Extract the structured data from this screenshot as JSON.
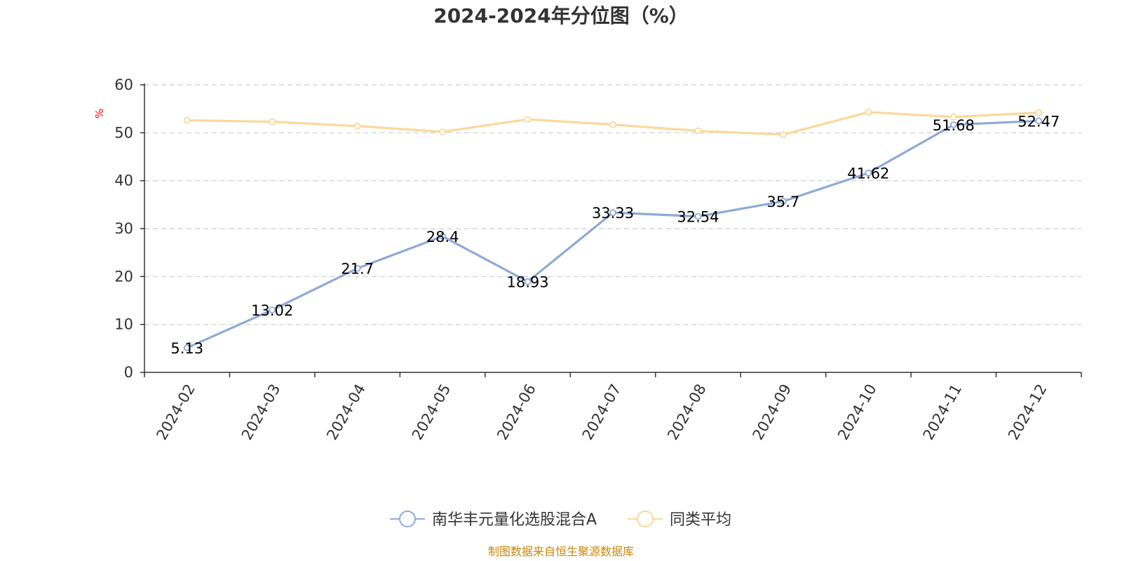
{
  "chart_data": {
    "type": "line",
    "title": "2024-2024年分位图（%）",
    "ylabel": "%",
    "ylim": [
      0,
      60
    ],
    "yticks": [
      0,
      10,
      20,
      30,
      40,
      50,
      60
    ],
    "categories": [
      "2024-02",
      "2024-03",
      "2024-04",
      "2024-05",
      "2024-06",
      "2024-07",
      "2024-08",
      "2024-09",
      "2024-10",
      "2024-11",
      "2024-12"
    ],
    "grid": true,
    "legend_position": "bottom",
    "series": [
      {
        "name": "南华丰元量化选股混合A",
        "color": "#8eaad8",
        "values": [
          5.13,
          13.02,
          21.7,
          28.4,
          18.93,
          33.33,
          32.54,
          35.7,
          41.62,
          51.68,
          52.47
        ],
        "data_labels": [
          "5.13",
          "13.02",
          "21.7",
          "28.4",
          "18.93",
          "33.33",
          "32.54",
          "35.7",
          "41.62",
          "51.68",
          "52.47"
        ]
      },
      {
        "name": "同类平均",
        "color": "#fbd89a",
        "values": [
          52.6,
          52.3,
          51.4,
          50.2,
          52.8,
          51.7,
          50.4,
          49.6,
          54.3,
          53.3,
          54.2
        ]
      }
    ]
  },
  "ylabel_color": "#ff0000",
  "source": {
    "text": "制图数据来自恒生聚源数据库",
    "color": "#c8860a"
  }
}
